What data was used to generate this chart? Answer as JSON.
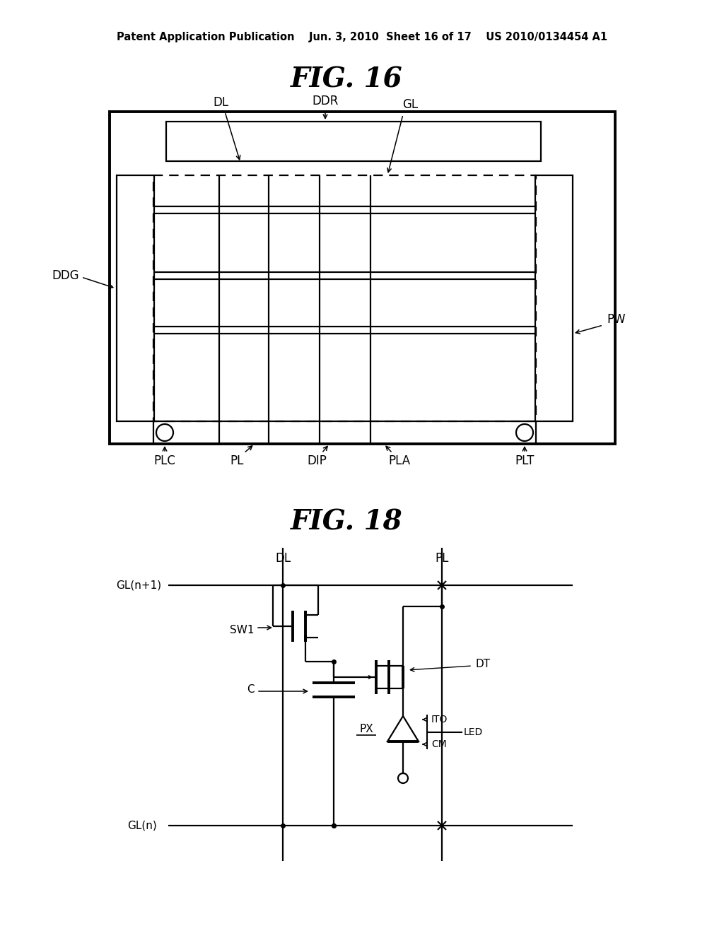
{
  "header": "Patent Application Publication    Jun. 3, 2010  Sheet 16 of 17    US 2010/0134454 A1",
  "fig16_title": "FIG. 16",
  "fig18_title": "FIG. 18",
  "bg_color": "#ffffff"
}
